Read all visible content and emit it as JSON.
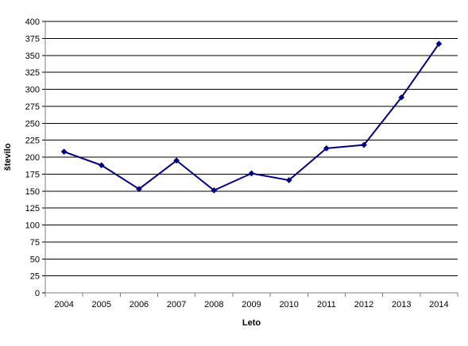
{
  "chart_data": {
    "type": "line",
    "title": "",
    "xlabel": "Leto",
    "ylabel": "število",
    "categories": [
      "2004",
      "2005",
      "2006",
      "2007",
      "2008",
      "2009",
      "2010",
      "2011",
      "2012",
      "2013",
      "2014"
    ],
    "series": [
      {
        "values": [
          208,
          188,
          153,
          195,
          151,
          176,
          166,
          213,
          218,
          288,
          367
        ],
        "color": "#000080",
        "marker": "diamond"
      }
    ],
    "ylim": [
      0,
      400
    ],
    "y_ticks": [
      "0",
      "25",
      "50",
      "75",
      "100",
      "125",
      "150",
      "175",
      "200",
      "225",
      "250",
      "275",
      "300",
      "325",
      "350",
      "375",
      "400"
    ],
    "grid": true,
    "legend": "none"
  }
}
